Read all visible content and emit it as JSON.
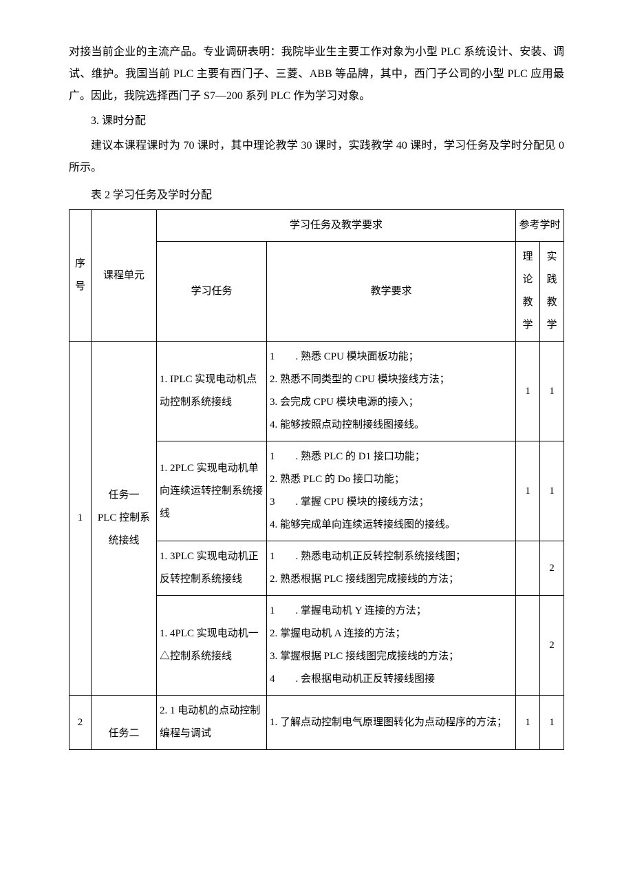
{
  "paragraphs": {
    "p1": "对接当前企业的主流产品。专业调研表明：我院毕业生主要工作对象为小型 PLC 系统设计、安装、调试、维护。我国当前 PLC 主要有西门子、三菱、ABB 等品牌，其中，西门子公司的小型 PLC 应用最广。因此，我院选择西门子 S7—200 系列 PLC 作为学习对象。",
    "p2_title": "3. 课时分配",
    "p3": "建议本课程课时为 70 课时，其中理论教学 30 课时，实践教学 40 课时，学习任务及学时分配见 0 所示。",
    "table_caption": "表 2 学习任务及学时分配"
  },
  "table": {
    "headers": {
      "seq": "序号",
      "unit": "课程单元",
      "task_and_req": "学习任务及教学要求",
      "ref_hours": "参考学时",
      "task": "学习任务",
      "req": "教学要求",
      "theory": "理论教学",
      "practice": "实践教学"
    },
    "row1": {
      "seq": "1",
      "unit": "任务一\nPLC 控制系统接线",
      "task_1_1": "1. IPLC 实现电动机点动控制系统接线",
      "req_1_1_a": "1　　. 熟悉 CPU 模块面板功能；",
      "req_1_1_b": "2. 熟悉不同类型的 CPU 模块接线方法；",
      "req_1_1_c": "3. 会完成 CPU 模块电源的接入；",
      "req_1_1_d": "4. 能够按照点动控制接线图接线。",
      "h_1_1_t": "1",
      "h_1_1_p": "1",
      "task_1_2": "1. 2PLC 实现电动机单向连续运转控制系统接线",
      "req_1_2_a": "1　　. 熟悉 PLC 的 D1 接口功能；",
      "req_1_2_b": "2. 熟悉 PLC 的 Do 接口功能；",
      "req_1_2_c": "3　　. 掌握 CPU 模块的接线方法；",
      "req_1_2_d": "4. 能够完成单向连续运转接线图的接线。",
      "h_1_2_t": "1",
      "h_1_2_p": "1",
      "task_1_3": "1. 3PLC 实现电动机正反转控制系统接线",
      "req_1_3_a": "1　　. 熟悉电动机正反转控制系统接线图；",
      "req_1_3_b": "2. 熟悉根据 PLC 接线图完成接线的方法；",
      "h_1_3_t": "",
      "h_1_3_p": "2",
      "task_1_4": "1. 4PLC 实现电动机一△控制系统接线",
      "req_1_4_a": "1　　. 掌握电动机 Y 连接的方法；",
      "req_1_4_b": "2. 掌握电动机 A 连接的方法；",
      "req_1_4_c": "3. 掌握根据 PLC 接线图完成接线的方法；",
      "req_1_4_d": "4　　. 会根据电动机正反转接线图接",
      "h_1_4_t": "",
      "h_1_4_p": "2"
    },
    "row2": {
      "seq": "2",
      "unit": "任务二",
      "task_2_1": "2. 1 电动机的点动控制编程与调试",
      "req_2_1_a": "1. 了解点动控制电气原理图转化为点动程序的方法；",
      "h_2_1_t": "1",
      "h_2_1_p": "1"
    }
  }
}
